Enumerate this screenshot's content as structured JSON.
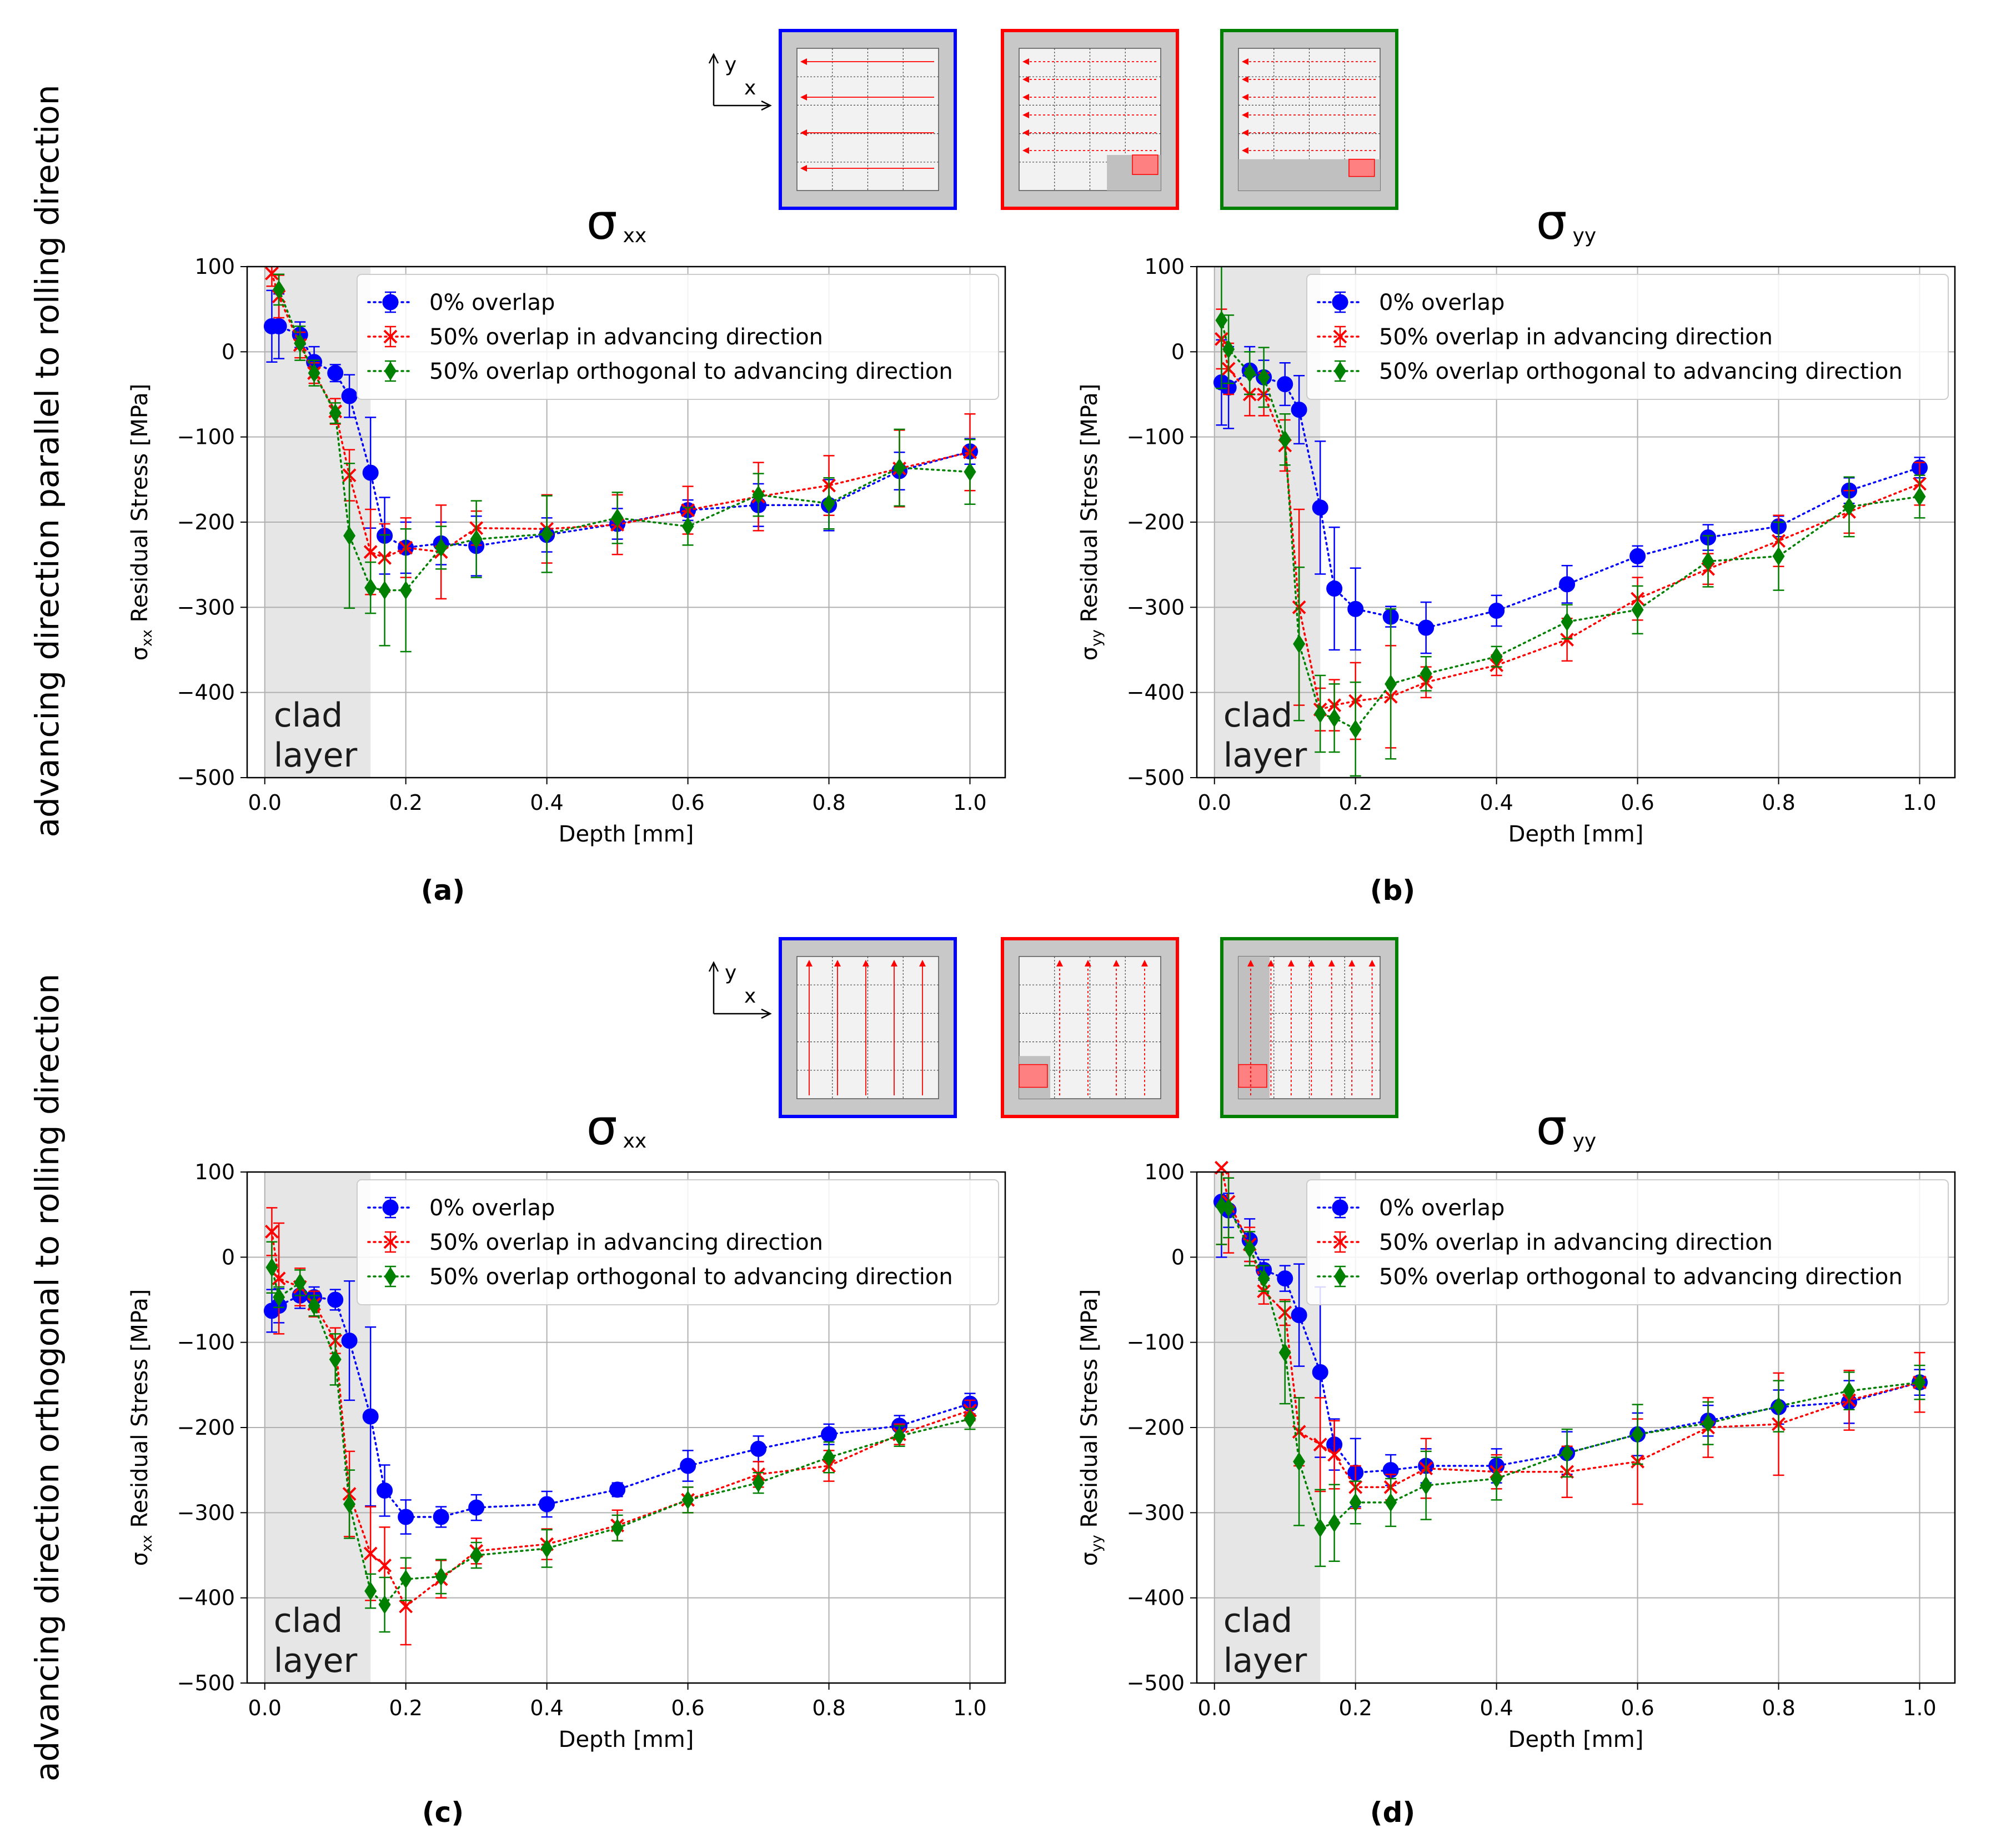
{
  "row_labels": [
    "advancing direction parallel to rolling direction",
    "advancing direction orthogonal to rolling direction"
  ],
  "schematics": {
    "axis_x": "x",
    "axis_y": "y",
    "rows": [
      {
        "scan": "horizontal",
        "frames": [
          {
            "color": "#0000ff",
            "variant": "full"
          },
          {
            "color": "#ff0000",
            "variant": "overlap-advancing"
          },
          {
            "color": "#008000",
            "variant": "overlap-orthogonal"
          }
        ]
      },
      {
        "scan": "vertical",
        "frames": [
          {
            "color": "#0000ff",
            "variant": "full"
          },
          {
            "color": "#ff0000",
            "variant": "overlap-advancing"
          },
          {
            "color": "#008000",
            "variant": "overlap-orthogonal"
          }
        ]
      }
    ]
  },
  "series_styles": [
    {
      "name": "0% overlap",
      "color": "#0000ff",
      "marker": "circle"
    },
    {
      "name": "50% overlap in advancing direction",
      "color": "#ff0000",
      "marker": "x"
    },
    {
      "name": "50% overlap orthogonal to advancing direction",
      "color": "#008000",
      "marker": "diamond"
    }
  ],
  "chart_data": [
    {
      "panel": "(a)",
      "type": "line",
      "title": "σ",
      "title_subscript": "xx",
      "xlabel": "Depth [mm]",
      "ylabel": "σ",
      "ylabel_subscript": "xx",
      "ylabel_rest": " Residual Stress [MPa]",
      "xlim": [
        -0.025,
        1.05
      ],
      "ylim": [
        -500,
        100
      ],
      "xticks": [
        0.0,
        0.2,
        0.4,
        0.6,
        0.8,
        1.0
      ],
      "xtick_labels": [
        "0.0",
        "0.2",
        "0.4",
        "0.6",
        "0.8",
        "1.0"
      ],
      "yticks": [
        100,
        0,
        -100,
        -200,
        -300,
        -400,
        -500
      ],
      "ytick_labels": [
        "100",
        "0",
        "−100",
        "−200",
        "−300",
        "−400",
        "−500"
      ],
      "grid": true,
      "legend": "top-right",
      "shaded_region": {
        "x": [
          0,
          0.15
        ],
        "label_line1": "clad",
        "label_line2": "layer"
      },
      "series": [
        {
          "name": "0% overlap",
          "x": [
            0.01,
            0.02,
            0.05,
            0.07,
            0.1,
            0.12,
            0.15,
            0.17,
            0.2,
            0.25,
            0.3,
            0.4,
            0.5,
            0.6,
            0.7,
            0.8,
            0.9,
            1.0
          ],
          "y": [
            30,
            30,
            20,
            -12,
            -25,
            -52,
            -142,
            -216,
            -230,
            -225,
            -228,
            -215,
            -202,
            -186,
            -180,
            -180,
            -140,
            -117
          ],
          "err": [
            42,
            38,
            15,
            18,
            10,
            25,
            65,
            45,
            30,
            25,
            35,
            20,
            18,
            12,
            25,
            30,
            22,
            15
          ]
        },
        {
          "name": "50% overlap in advancing direction",
          "x": [
            0.01,
            0.02,
            0.05,
            0.07,
            0.1,
            0.12,
            0.15,
            0.17,
            0.2,
            0.25,
            0.3,
            0.4,
            0.5,
            0.6,
            0.7,
            0.8,
            0.9,
            1.0
          ],
          "y": [
            92,
            65,
            8,
            -25,
            -70,
            -145,
            -235,
            -242,
            -230,
            -235,
            -207,
            -208,
            -203,
            -186,
            -170,
            -157,
            -137,
            -118
          ],
          "err": [
            15,
            25,
            15,
            12,
            15,
            30,
            50,
            40,
            35,
            55,
            20,
            40,
            35,
            28,
            40,
            35,
            45,
            45
          ]
        },
        {
          "name": "50% overlap orthogonal to advancing direction",
          "x": [
            0.02,
            0.05,
            0.07,
            0.1,
            0.12,
            0.15,
            0.17,
            0.2,
            0.25,
            0.3,
            0.4,
            0.5,
            0.6,
            0.7,
            0.8,
            0.9,
            1.0
          ],
          "y": [
            73,
            10,
            -25,
            -72,
            -216,
            -277,
            -280,
            -280,
            -230,
            -220,
            -214,
            -195,
            -205,
            -168,
            -178,
            -136,
            -141
          ],
          "err": [
            18,
            20,
            15,
            12,
            85,
            30,
            65,
            72,
            25,
            45,
            45,
            30,
            22,
            25,
            30,
            45,
            38
          ]
        }
      ]
    },
    {
      "panel": "(b)",
      "type": "line",
      "title": "σ",
      "title_subscript": "yy",
      "xlabel": "Depth [mm]",
      "ylabel": "σ",
      "ylabel_subscript": "yy",
      "ylabel_rest": " Residual Stress [MPa]",
      "xlim": [
        -0.025,
        1.05
      ],
      "ylim": [
        -500,
        100
      ],
      "xticks": [
        0.0,
        0.2,
        0.4,
        0.6,
        0.8,
        1.0
      ],
      "xtick_labels": [
        "0.0",
        "0.2",
        "0.4",
        "0.6",
        "0.8",
        "1.0"
      ],
      "yticks": [
        100,
        0,
        -100,
        -200,
        -300,
        -400,
        -500
      ],
      "ytick_labels": [
        "100",
        "0",
        "−100",
        "−200",
        "−300",
        "−400",
        "−500"
      ],
      "grid": true,
      "legend": "top-right",
      "shaded_region": {
        "x": [
          0,
          0.15
        ],
        "label_line1": "clad",
        "label_line2": "layer"
      },
      "series": [
        {
          "name": "0% overlap",
          "x": [
            0.01,
            0.02,
            0.05,
            0.07,
            0.1,
            0.12,
            0.15,
            0.17,
            0.2,
            0.25,
            0.3,
            0.4,
            0.5,
            0.6,
            0.7,
            0.8,
            0.9,
            1.0
          ],
          "y": [
            -36,
            -42,
            -22,
            -30,
            -38,
            -68,
            -183,
            -278,
            -302,
            -311,
            -324,
            -304,
            -273,
            -240,
            -218,
            -205,
            -163,
            -136
          ],
          "err": [
            50,
            48,
            28,
            20,
            25,
            40,
            78,
            72,
            48,
            12,
            30,
            18,
            22,
            12,
            15,
            12,
            15,
            12
          ]
        },
        {
          "name": "50% overlap in advancing direction",
          "x": [
            0.01,
            0.02,
            0.05,
            0.07,
            0.1,
            0.12,
            0.15,
            0.17,
            0.2,
            0.25,
            0.3,
            0.4,
            0.5,
            0.6,
            0.7,
            0.8,
            0.9,
            1.0
          ],
          "y": [
            15,
            -20,
            -50,
            -50,
            -110,
            -300,
            -420,
            -415,
            -410,
            -405,
            -388,
            -368,
            -338,
            -290,
            -255,
            -222,
            -188,
            -155
          ],
          "err": [
            35,
            30,
            25,
            25,
            30,
            115,
            25,
            30,
            45,
            60,
            18,
            12,
            25,
            25,
            18,
            30,
            25,
            25
          ]
        },
        {
          "name": "50% overlap orthogonal to advancing direction",
          "x": [
            0.01,
            0.02,
            0.05,
            0.07,
            0.1,
            0.12,
            0.15,
            0.17,
            0.2,
            0.25,
            0.3,
            0.4,
            0.5,
            0.6,
            0.7,
            0.8,
            0.9,
            1.0
          ],
          "y": [
            37,
            3,
            -25,
            -30,
            -103,
            -343,
            -425,
            -430,
            -443,
            -390,
            -378,
            -358,
            -317,
            -303,
            -246,
            -240,
            -182,
            -170
          ],
          "err": [
            80,
            40,
            25,
            35,
            30,
            90,
            45,
            40,
            55,
            88,
            20,
            12,
            20,
            28,
            30,
            40,
            35,
            25
          ]
        }
      ]
    },
    {
      "panel": "(c)",
      "type": "line",
      "title": "σ",
      "title_subscript": "xx",
      "xlabel": "Depth [mm]",
      "ylabel": "σ",
      "ylabel_subscript": "xx",
      "ylabel_rest": " Residual Stress [MPa]",
      "xlim": [
        -0.025,
        1.05
      ],
      "ylim": [
        -500,
        100
      ],
      "xticks": [
        0.0,
        0.2,
        0.4,
        0.6,
        0.8,
        1.0
      ],
      "xtick_labels": [
        "0.0",
        "0.2",
        "0.4",
        "0.6",
        "0.8",
        "1.0"
      ],
      "yticks": [
        100,
        0,
        -100,
        -200,
        -300,
        -400,
        -500
      ],
      "ytick_labels": [
        "100",
        "0",
        "−100",
        "−200",
        "−300",
        "−400",
        "−500"
      ],
      "grid": true,
      "legend": "top-right",
      "shaded_region": {
        "x": [
          0,
          0.15
        ],
        "label_line1": "clad",
        "label_line2": "layer"
      },
      "series": [
        {
          "name": "0% overlap",
          "x": [
            0.01,
            0.02,
            0.05,
            0.07,
            0.1,
            0.12,
            0.15,
            0.17,
            0.2,
            0.25,
            0.3,
            0.4,
            0.5,
            0.6,
            0.7,
            0.8,
            0.9,
            1.0
          ],
          "y": [
            -63,
            -57,
            -45,
            -47,
            -50,
            -98,
            -187,
            -274,
            -305,
            -305,
            -294,
            -290,
            -273,
            -245,
            -225,
            -208,
            -198,
            -172
          ],
          "err": [
            25,
            20,
            15,
            12,
            12,
            70,
            105,
            30,
            20,
            12,
            15,
            15,
            8,
            18,
            15,
            12,
            12,
            12
          ]
        },
        {
          "name": "50% overlap in advancing direction",
          "x": [
            0.01,
            0.02,
            0.05,
            0.07,
            0.1,
            0.12,
            0.15,
            0.17,
            0.2,
            0.25,
            0.3,
            0.4,
            0.5,
            0.6,
            0.7,
            0.8,
            0.9,
            1.0
          ],
          "y": [
            30,
            -25,
            -35,
            -55,
            -98,
            -278,
            -348,
            -362,
            -410,
            -378,
            -345,
            -337,
            -315,
            -285,
            -255,
            -245,
            -208,
            -180
          ],
          "err": [
            28,
            65,
            22,
            15,
            15,
            50,
            55,
            45,
            45,
            22,
            15,
            18,
            18,
            15,
            15,
            18,
            12,
            12
          ]
        },
        {
          "name": "50% overlap orthogonal to advancing direction",
          "x": [
            0.01,
            0.02,
            0.05,
            0.07,
            0.1,
            0.12,
            0.15,
            0.17,
            0.2,
            0.25,
            0.3,
            0.4,
            0.5,
            0.6,
            0.7,
            0.8,
            0.9,
            1.0
          ],
          "y": [
            -12,
            -47,
            -30,
            -57,
            -120,
            -290,
            -392,
            -408,
            -378,
            -375,
            -350,
            -342,
            -318,
            -285,
            -265,
            -235,
            -210,
            -190
          ],
          "err": [
            30,
            12,
            15,
            12,
            30,
            40,
            20,
            32,
            25,
            20,
            15,
            22,
            15,
            15,
            12,
            18,
            12,
            12
          ]
        }
      ]
    },
    {
      "panel": "(d)",
      "type": "line",
      "title": "σ",
      "title_subscript": "yy",
      "xlabel": "Depth [mm]",
      "ylabel": "σ",
      "ylabel_subscript": "yy",
      "ylabel_rest": " Residual Stress [MPa]",
      "xlim": [
        -0.025,
        1.05
      ],
      "ylim": [
        -500,
        100
      ],
      "xticks": [
        0.0,
        0.2,
        0.4,
        0.6,
        0.8,
        1.0
      ],
      "xtick_labels": [
        "0.0",
        "0.2",
        "0.4",
        "0.6",
        "0.8",
        "1.0"
      ],
      "yticks": [
        100,
        0,
        -100,
        -200,
        -300,
        -400,
        -500
      ],
      "ytick_labels": [
        "100",
        "0",
        "−100",
        "−200",
        "−300",
        "−400",
        "−500"
      ],
      "grid": true,
      "legend": "top-right",
      "shaded_region": {
        "x": [
          0,
          0.15
        ],
        "label_line1": "clad",
        "label_line2": "layer"
      },
      "series": [
        {
          "name": "0% overlap",
          "x": [
            0.01,
            0.02,
            0.05,
            0.07,
            0.1,
            0.12,
            0.15,
            0.17,
            0.2,
            0.25,
            0.3,
            0.4,
            0.5,
            0.6,
            0.7,
            0.8,
            0.9,
            1.0
          ],
          "y": [
            65,
            55,
            20,
            -15,
            -25,
            -68,
            -135,
            -220,
            -253,
            -250,
            -245,
            -245,
            -230,
            -208,
            -192,
            -176,
            -170,
            -147
          ],
          "err": [
            65,
            20,
            25,
            12,
            15,
            60,
            100,
            30,
            40,
            18,
            20,
            20,
            25,
            25,
            18,
            20,
            25,
            15
          ]
        },
        {
          "name": "50% overlap in advancing direction",
          "x": [
            0.01,
            0.02,
            0.05,
            0.07,
            0.1,
            0.12,
            0.15,
            0.17,
            0.2,
            0.25,
            0.3,
            0.4,
            0.5,
            0.6,
            0.7,
            0.8,
            0.9,
            1.0
          ],
          "y": [
            105,
            65,
            15,
            -40,
            -65,
            -205,
            -220,
            -232,
            -270,
            -270,
            -248,
            -252,
            -252,
            -240,
            -200,
            -196,
            -168,
            -147
          ],
          "err": [
            90,
            60,
            20,
            15,
            15,
            40,
            55,
            40,
            25,
            15,
            35,
            20,
            30,
            50,
            35,
            60,
            35,
            35
          ]
        },
        {
          "name": "50% overlap orthogonal to advancing direction",
          "x": [
            0.01,
            0.02,
            0.05,
            0.07,
            0.1,
            0.12,
            0.15,
            0.17,
            0.2,
            0.25,
            0.3,
            0.4,
            0.5,
            0.6,
            0.7,
            0.8,
            0.9,
            1.0
          ],
          "y": [
            60,
            58,
            10,
            -25,
            -112,
            -240,
            -318,
            -312,
            -288,
            -288,
            -268,
            -260,
            -230,
            -208,
            -195,
            -175,
            -157,
            -147
          ],
          "err": [
            45,
            35,
            20,
            15,
            60,
            75,
            45,
            45,
            25,
            28,
            40,
            25,
            28,
            35,
            25,
            30,
            22,
            20
          ]
        }
      ]
    }
  ]
}
